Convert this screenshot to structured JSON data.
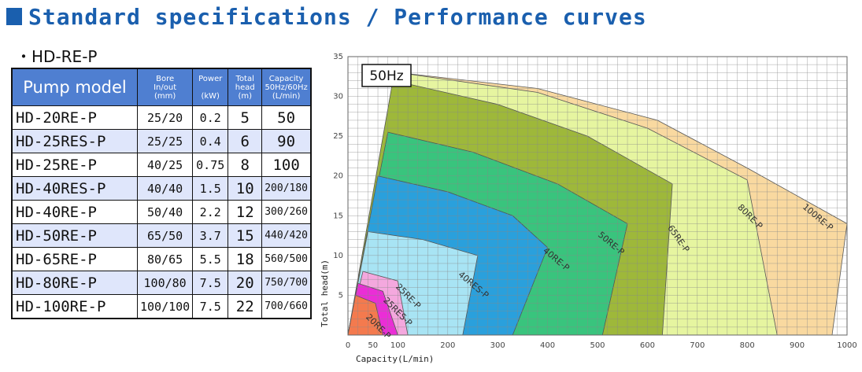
{
  "header": {
    "title": "Standard specifications / Performance curves"
  },
  "subtitle": "・HD-RE-P",
  "table": {
    "headers": {
      "model": "Pump model",
      "bore": [
        "Bore",
        "In/out",
        "(mm)"
      ],
      "power": [
        "Power",
        "",
        "(kW)"
      ],
      "head": [
        "Total",
        "head",
        "(m)"
      ],
      "capacity": [
        "Capacity",
        "50Hz/60Hz",
        "(L/min)"
      ]
    },
    "rows": [
      {
        "model": "HD-20RE-P",
        "bore": "25/20",
        "power": "0.2",
        "head": "5",
        "capacity": "50"
      },
      {
        "model": "HD-25RES-P",
        "bore": "25/25",
        "power": "0.4",
        "head": "6",
        "capacity": "90"
      },
      {
        "model": "HD-25RE-P",
        "bore": "40/25",
        "power": "0.75",
        "head": "8",
        "capacity": "100"
      },
      {
        "model": "HD-40RES-P",
        "bore": "40/40",
        "power": "1.5",
        "head": "10",
        "capacity": "200/180"
      },
      {
        "model": "HD-40RE-P",
        "bore": "50/40",
        "power": "2.2",
        "head": "12",
        "capacity": "300/260"
      },
      {
        "model": "HD-50RE-P",
        "bore": "65/50",
        "power": "3.7",
        "head": "15",
        "capacity": "440/420"
      },
      {
        "model": "HD-65RE-P",
        "bore": "80/65",
        "power": "5.5",
        "head": "18",
        "capacity": "560/500"
      },
      {
        "model": "HD-80RE-P",
        "bore": "100/80",
        "power": "7.5",
        "head": "20",
        "capacity": "750/700"
      },
      {
        "model": "HD-100RE-P",
        "bore": "100/100",
        "power": "7.5",
        "head": "22",
        "capacity": "700/660"
      }
    ]
  },
  "chart_data": {
    "type": "area",
    "badge": "50Hz",
    "xlabel": "Capacity(L/min)",
    "ylabel": "Total head(m)",
    "xlim": [
      0,
      1000
    ],
    "ylim": [
      0,
      35
    ],
    "x_ticks": [
      0,
      50,
      100,
      200,
      300,
      400,
      500,
      600,
      700,
      800,
      900,
      1000
    ],
    "y_ticks": [
      5,
      10,
      15,
      20,
      25,
      30,
      35
    ],
    "grid": true,
    "regions": [
      {
        "name": "100RE-P",
        "color": "#f9d9a0",
        "points": [
          [
            100,
            33
          ],
          [
            380,
            31
          ],
          [
            620,
            27
          ],
          [
            800,
            21
          ],
          [
            1000,
            14
          ],
          [
            970,
            0
          ]
        ]
      },
      {
        "name": "80RE-P",
        "color": "#e6f5a0",
        "points": [
          [
            100,
            33
          ],
          [
            380,
            30.5
          ],
          [
            600,
            26
          ],
          [
            800,
            19.5
          ],
          [
            860,
            0
          ]
        ]
      },
      {
        "name": "65RE-P",
        "color": "#9eb83a",
        "points": [
          [
            90,
            32
          ],
          [
            300,
            29
          ],
          [
            480,
            25
          ],
          [
            650,
            19
          ],
          [
            630,
            0
          ]
        ]
      },
      {
        "name": "50RE-P",
        "color": "#39c47d",
        "points": [
          [
            80,
            25.5
          ],
          [
            250,
            23
          ],
          [
            420,
            19
          ],
          [
            560,
            14
          ],
          [
            510,
            0
          ]
        ]
      },
      {
        "name": "40RE-P",
        "color": "#2aa0dc",
        "points": [
          [
            60,
            20
          ],
          [
            200,
            18
          ],
          [
            330,
            15
          ],
          [
            400,
            11
          ],
          [
            330,
            0
          ]
        ]
      },
      {
        "name": "40RES-P",
        "color": "#a8e4f4",
        "points": [
          [
            40,
            13
          ],
          [
            150,
            12
          ],
          [
            260,
            10
          ],
          [
            230,
            0
          ]
        ]
      },
      {
        "name": "25RE-P",
        "color": "#f4a8de",
        "points": [
          [
            30,
            8
          ],
          [
            100,
            6.8
          ],
          [
            120,
            0
          ]
        ]
      },
      {
        "name": "25RES-P",
        "color": "#ea2ed6",
        "points": [
          [
            20,
            6.5
          ],
          [
            70,
            5.5
          ],
          [
            100,
            0
          ]
        ]
      },
      {
        "name": "20RE-P",
        "color": "#f47a4e",
        "points": [
          [
            15,
            5
          ],
          [
            55,
            4
          ],
          [
            70,
            0
          ]
        ]
      }
    ],
    "labels": [
      {
        "text": "100RE-P",
        "x": 910,
        "y": 16,
        "rotate": 40
      },
      {
        "text": "80RE-P",
        "x": 780,
        "y": 16,
        "rotate": 45
      },
      {
        "text": "65RE-P",
        "x": 640,
        "y": 13.5,
        "rotate": 55
      },
      {
        "text": "50RE-P",
        "x": 500,
        "y": 12.5,
        "rotate": 40
      },
      {
        "text": "40RE-P",
        "x": 390,
        "y": 10.5,
        "rotate": 40
      },
      {
        "text": "40RES-P",
        "x": 220,
        "y": 7.5,
        "rotate": 40
      },
      {
        "text": "25RE-P",
        "x": 95,
        "y": 6,
        "rotate": 45
      },
      {
        "text": "25RES-P",
        "x": 70,
        "y": 4.3,
        "rotate": 45
      },
      {
        "text": "20RE-P",
        "x": 35,
        "y": 2.2,
        "rotate": 45
      }
    ]
  }
}
